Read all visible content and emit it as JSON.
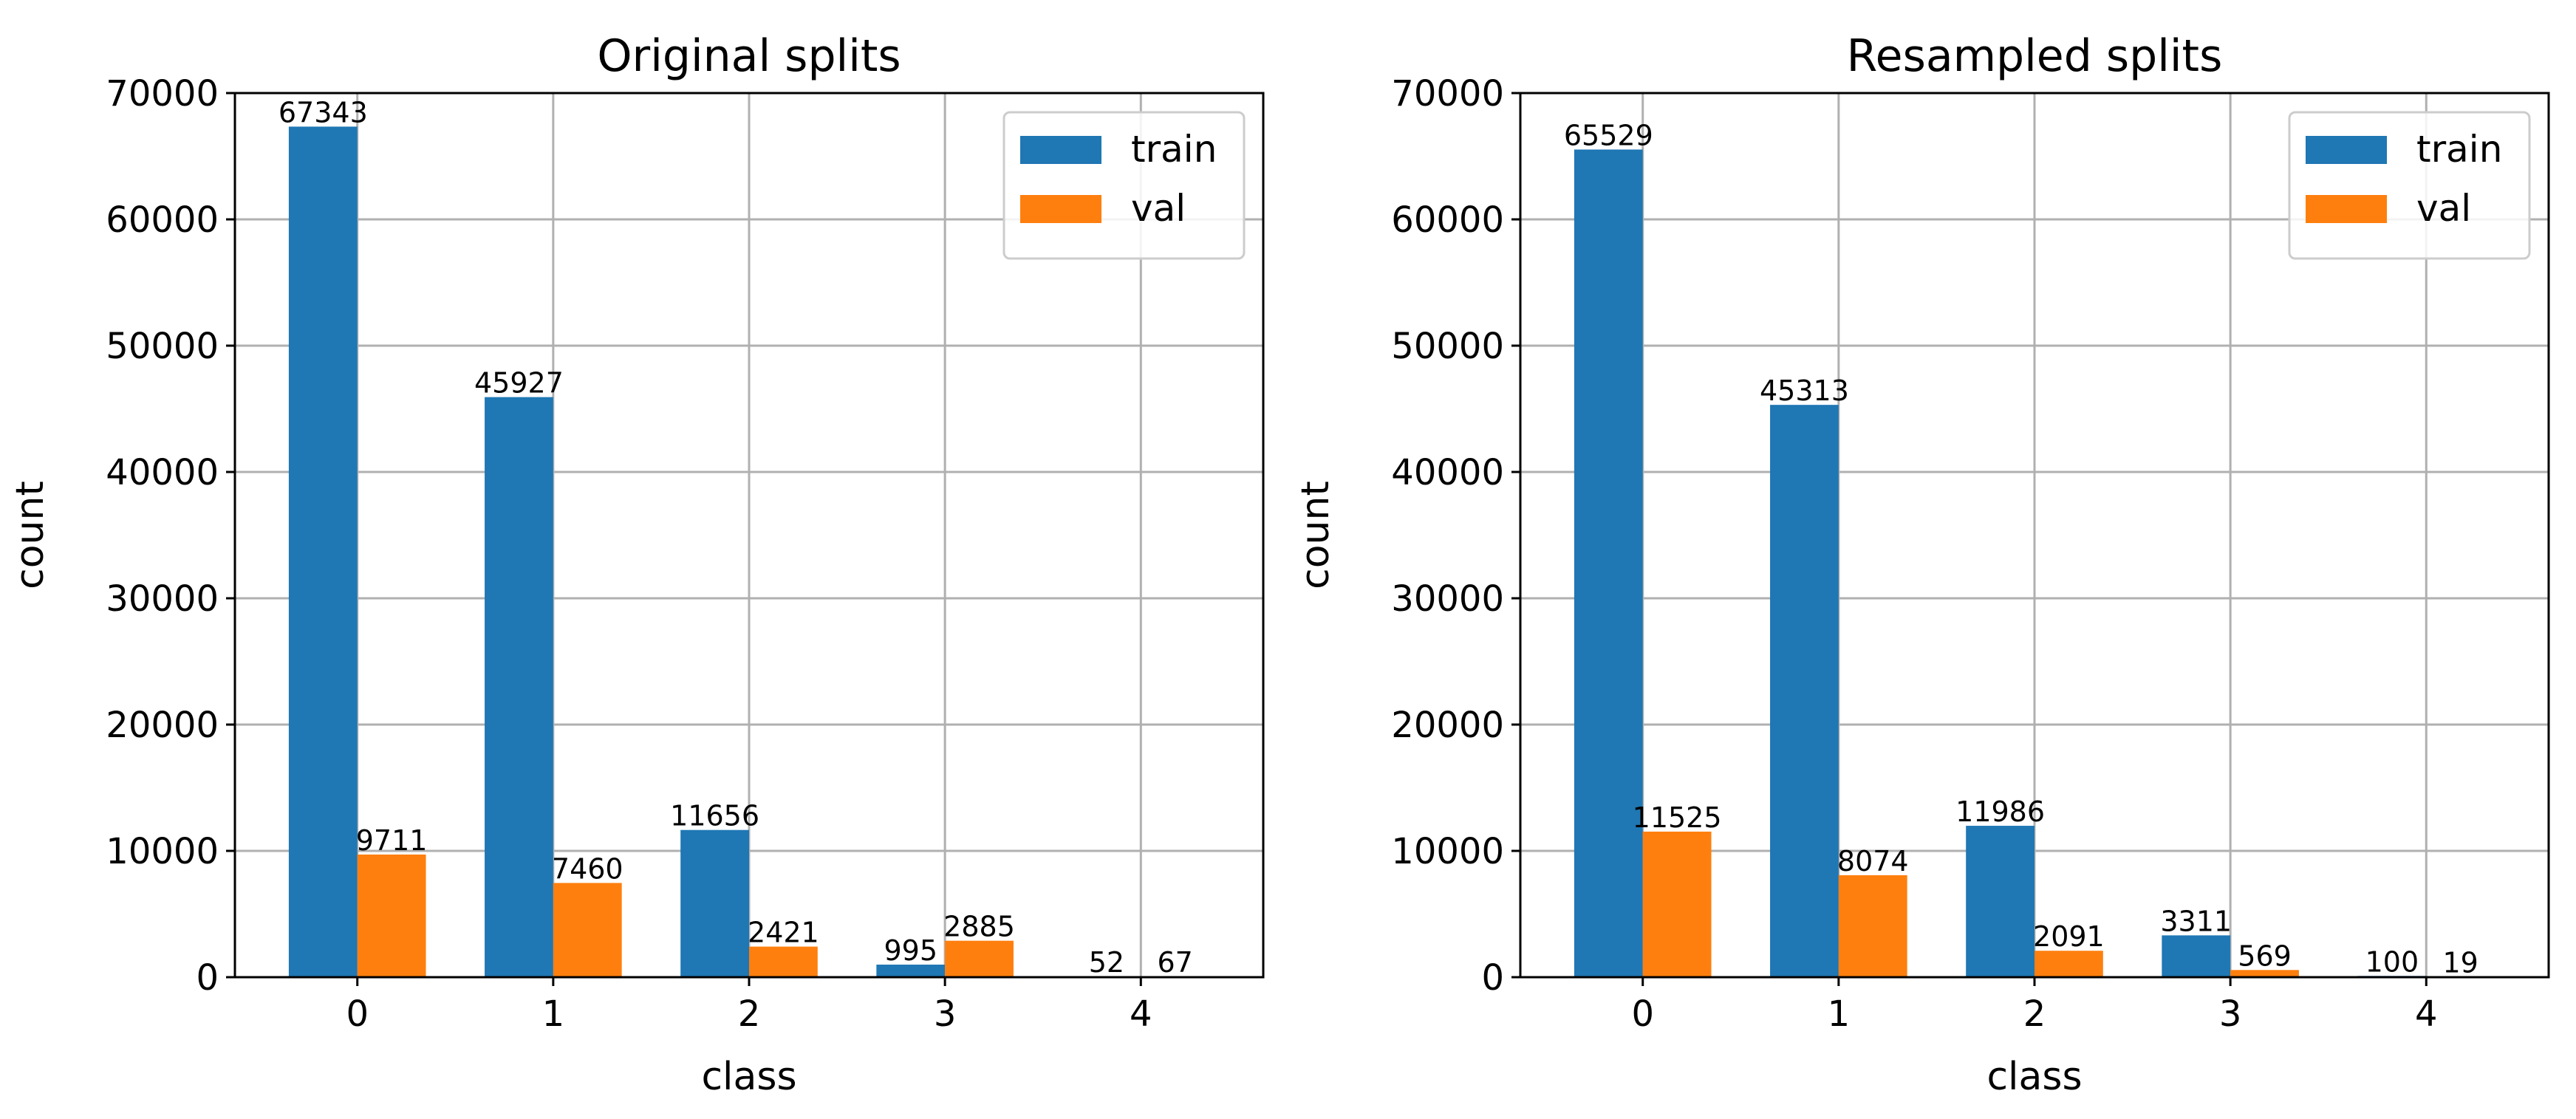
{
  "chart_data": [
    {
      "type": "bar",
      "title": "Original splits",
      "xlabel": "class",
      "ylabel": "count",
      "categories": [
        "0",
        "1",
        "2",
        "3",
        "4"
      ],
      "ylim": [
        0,
        70000
      ],
      "yticks": [
        "0",
        "10000",
        "20000",
        "30000",
        "40000",
        "50000",
        "60000",
        "70000"
      ],
      "grid": true,
      "legend_position": "upper right",
      "series": [
        {
          "name": "train",
          "color": "#1f77b4",
          "values": [
            67343,
            45927,
            11656,
            995,
            52
          ],
          "labels": [
            "67343",
            "45927",
            "11656",
            "995",
            "52"
          ]
        },
        {
          "name": "val",
          "color": "#ff7f0e",
          "values": [
            9711,
            7460,
            2421,
            2885,
            67
          ],
          "labels": [
            "9711",
            "7460",
            "2421",
            "2885",
            "67"
          ]
        }
      ]
    },
    {
      "type": "bar",
      "title": "Resampled splits",
      "xlabel": "class",
      "ylabel": "count",
      "categories": [
        "0",
        "1",
        "2",
        "3",
        "4"
      ],
      "ylim": [
        0,
        70000
      ],
      "yticks": [
        "0",
        "10000",
        "20000",
        "30000",
        "40000",
        "50000",
        "60000",
        "70000"
      ],
      "grid": true,
      "legend_position": "upper right",
      "series": [
        {
          "name": "train",
          "color": "#1f77b4",
          "values": [
            65529,
            45313,
            11986,
            3311,
            100
          ],
          "labels": [
            "65529",
            "45313",
            "11986",
            "3311",
            "100"
          ]
        },
        {
          "name": "val",
          "color": "#ff7f0e",
          "values": [
            11525,
            8074,
            2091,
            569,
            19
          ],
          "labels": [
            "11525",
            "8074",
            "2091",
            "569",
            "19"
          ]
        }
      ]
    }
  ]
}
